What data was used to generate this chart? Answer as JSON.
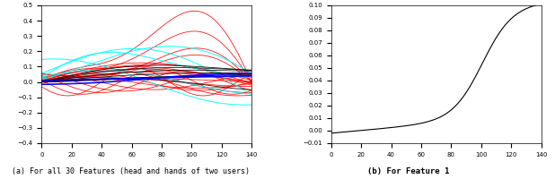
{
  "left_title": "(a) For all 30 Features (head and hands of two users)",
  "right_title": "(b) For Feature 1",
  "left_xlim": [
    0,
    140
  ],
  "left_ylim": [
    -0.4,
    0.5
  ],
  "left_yticks": [
    -0.4,
    -0.3,
    -0.2,
    -0.1,
    0.0,
    0.1,
    0.2,
    0.3,
    0.4,
    0.5
  ],
  "left_xticks": [
    0,
    20,
    40,
    60,
    80,
    100,
    120,
    140
  ],
  "right_xlim": [
    0,
    140
  ],
  "right_ylim": [
    -0.01,
    0.1
  ],
  "right_yticks": [
    -0.01,
    0.0,
    0.01,
    0.02,
    0.03,
    0.04,
    0.05,
    0.06,
    0.07,
    0.08,
    0.09,
    0.1
  ],
  "right_xticks": [
    0,
    20,
    40,
    60,
    80,
    100,
    120,
    140
  ],
  "n_points": 141,
  "background_color": "#ffffff",
  "title_fontsize": 6,
  "tick_fontsize": 5
}
